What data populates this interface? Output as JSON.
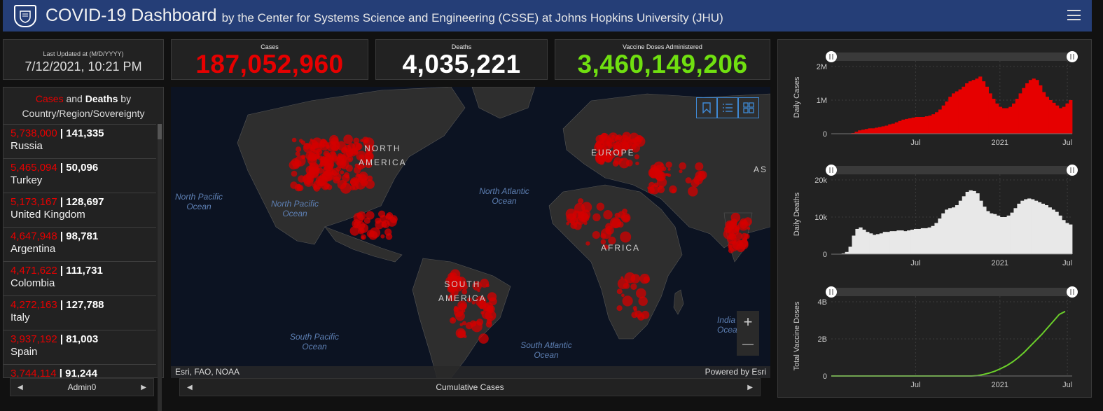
{
  "header": {
    "title": "COVID-19 Dashboard",
    "subtitle": "by the Center for Systems Science and Engineering (CSSE) at Johns Hopkins University (JHU)"
  },
  "last_updated": {
    "label": "Last Updated at (M/D/YYYY)",
    "value": "7/12/2021, 10:21 PM"
  },
  "stats": {
    "cases": {
      "label": "Cases",
      "value": "187,052,960",
      "color": "#e60000"
    },
    "deaths": {
      "label": "Deaths",
      "value": "4,035,221",
      "color": "#ffffff"
    },
    "vaccines": {
      "label": "Vaccine Doses Administered",
      "value": "3,460,149,206",
      "color": "#70e010"
    }
  },
  "country_list": {
    "title_cases": "Cases",
    "title_and": "and",
    "title_deaths": "Deaths",
    "title_by": "by",
    "title_line2": "Country/Region/Sovereignty",
    "items": [
      {
        "cases": "5,738,000",
        "deaths": "141,335",
        "country": "Russia"
      },
      {
        "cases": "5,465,094",
        "deaths": "50,096",
        "country": "Turkey"
      },
      {
        "cases": "5,173,167",
        "deaths": "128,697",
        "country": "United Kingdom"
      },
      {
        "cases": "4,647,948",
        "deaths": "98,781",
        "country": "Argentina"
      },
      {
        "cases": "4,471,622",
        "deaths": "111,731",
        "country": "Colombia"
      },
      {
        "cases": "4,272,163",
        "deaths": "127,788",
        "country": "Italy"
      },
      {
        "cases": "3,937,192",
        "deaths": "81,003",
        "country": "Spain"
      },
      {
        "cases": "3,744,114",
        "deaths": "91,244",
        "country": ""
      }
    ],
    "pager_label": "Admin0"
  },
  "map": {
    "ocean_labels": {
      "north_pacific_left": "North Pacific\nOcean",
      "north_pacific": "North Pacific\nOcean",
      "north_atlantic": "North Atlantic\nOcean",
      "south_pacific": "South Pacific\nOcean",
      "south_atlantic": "South Atlantic\nOcean",
      "indian": "India\nOcea"
    },
    "continent_labels": {
      "north_america": "NORTH\nAMERICA",
      "south_america": "SOUTH\nAMERICA",
      "europe": "EUROPE",
      "africa": "AFRICA",
      "asia": "AS"
    },
    "attribution_left": "Esri, FAO, NOAA",
    "attribution_right": "Powered by Esri",
    "pager_label": "Cumulative Cases",
    "zoom_in": "+",
    "zoom_out": "—"
  },
  "chart_data": [
    {
      "type": "bar",
      "ylabel": "Daily Cases",
      "color": "#e60000",
      "yticks": [
        "0",
        "1M",
        "2M"
      ],
      "ylim": [
        0,
        2000000
      ],
      "xticks": [
        "Jul",
        "2021",
        "Jul"
      ],
      "series": [
        {
          "values": [
            0,
            0,
            0,
            0,
            0,
            0,
            0.01,
            0.03,
            0.05,
            0.06,
            0.07,
            0.08,
            0.08,
            0.09,
            0.1,
            0.11,
            0.12,
            0.14,
            0.15,
            0.17,
            0.19,
            0.21,
            0.22,
            0.23,
            0.24,
            0.25,
            0.25,
            0.25,
            0.26,
            0.27,
            0.29,
            0.32,
            0.36,
            0.42,
            0.48,
            0.55,
            0.6,
            0.63,
            0.66,
            0.7,
            0.75,
            0.78,
            0.8,
            0.82,
            0.85,
            0.78,
            0.7,
            0.6,
            0.52,
            0.45,
            0.4,
            0.38,
            0.38,
            0.4,
            0.45,
            0.52,
            0.6,
            0.68,
            0.75,
            0.8,
            0.82,
            0.8,
            0.72,
            0.62,
            0.55,
            0.5,
            0.46,
            0.42,
            0.38,
            0.4,
            0.45,
            0.5
          ]
        }
      ]
    },
    {
      "type": "bar",
      "ylabel": "Daily Deaths",
      "color": "#e8e8e8",
      "yticks": [
        "0",
        "10k",
        "20k"
      ],
      "ylim": [
        0,
        20000
      ],
      "xticks": [
        "Jul",
        "2021",
        "Jul"
      ],
      "series": [
        {
          "values": [
            0,
            0,
            0,
            0.01,
            0.03,
            0.1,
            0.25,
            0.34,
            0.36,
            0.33,
            0.3,
            0.28,
            0.26,
            0.27,
            0.28,
            0.3,
            0.3,
            0.31,
            0.31,
            0.32,
            0.32,
            0.31,
            0.32,
            0.33,
            0.34,
            0.34,
            0.35,
            0.35,
            0.36,
            0.38,
            0.42,
            0.48,
            0.55,
            0.6,
            0.62,
            0.63,
            0.66,
            0.72,
            0.78,
            0.84,
            0.86,
            0.85,
            0.82,
            0.72,
            0.64,
            0.58,
            0.55,
            0.54,
            0.52,
            0.5,
            0.5,
            0.52,
            0.56,
            0.62,
            0.68,
            0.72,
            0.74,
            0.75,
            0.74,
            0.72,
            0.7,
            0.68,
            0.66,
            0.63,
            0.6,
            0.57,
            0.52,
            0.46,
            0.42,
            0.4
          ]
        }
      ]
    },
    {
      "type": "line",
      "ylabel": "Total Vaccine Doses",
      "color": "#6bd02a",
      "yticks": [
        "0",
        "2B",
        "4B"
      ],
      "ylim": [
        0,
        4000000000
      ],
      "xticks": [
        "Jul",
        "2021",
        "Jul"
      ],
      "series": [
        {
          "values": [
            0,
            0,
            0,
            0,
            0,
            0,
            0,
            0,
            0,
            0,
            0,
            0,
            0,
            0,
            0,
            0,
            0,
            0,
            0,
            0,
            0,
            0,
            0,
            0,
            0,
            0.005,
            0.02,
            0.04,
            0.065,
            0.1,
            0.14,
            0.19,
            0.25,
            0.32,
            0.4,
            0.48,
            0.56,
            0.65,
            0.74,
            0.83,
            0.87
          ]
        }
      ]
    }
  ]
}
